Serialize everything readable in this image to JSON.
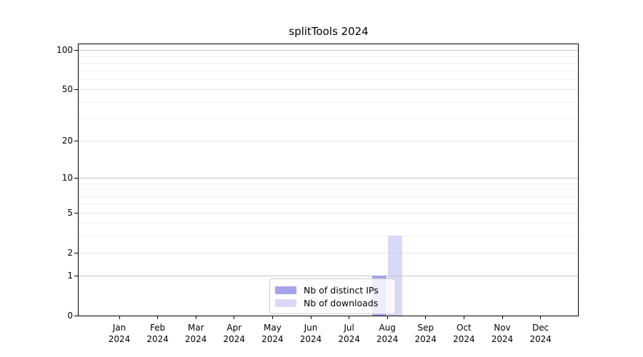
{
  "chart_data": {
    "type": "bar",
    "title": "splitTools 2024",
    "categories": [
      "Jan 2024",
      "Feb 2024",
      "Mar 2024",
      "Apr 2024",
      "May 2024",
      "Jun 2024",
      "Jul 2024",
      "Aug 2024",
      "Sep 2024",
      "Oct 2024",
      "Nov 2024",
      "Dec 2024"
    ],
    "series": [
      {
        "name": "Nb of distinct IPs",
        "color": "rgba(148,148,232,0.85)",
        "swatch_color": "#a4a4eb",
        "values": [
          0,
          0,
          0,
          0,
          0,
          0,
          0,
          1,
          0,
          0,
          0,
          0
        ]
      },
      {
        "name": "Nb of downloads",
        "color": "rgba(197,197,243,0.65)",
        "swatch_color": "#d9d9f7",
        "values": [
          0,
          0,
          0,
          0,
          0,
          0,
          0,
          3,
          0,
          0,
          0,
          0
        ]
      }
    ],
    "xlabel": "",
    "ylabel": "",
    "y_scale": "log10(1+x)",
    "ylim": [
      0,
      111
    ],
    "y_ticks": [
      0,
      1,
      2,
      5,
      10,
      20,
      50,
      100
    ],
    "y_ticks_minor": [
      3,
      4,
      6,
      7,
      8,
      9,
      30,
      40,
      60,
      70,
      80,
      90
    ],
    "y_ticks_emphasized": [
      1,
      10,
      100
    ],
    "grid": "horizontal",
    "legend_position": "bottom-center",
    "colors": {
      "grid_emphasized": "#c3c3c3",
      "grid_labeled": "#e3e3e3",
      "grid_minor": "#f1f1f1",
      "axis": "#000000",
      "background": "#ffffff"
    }
  }
}
